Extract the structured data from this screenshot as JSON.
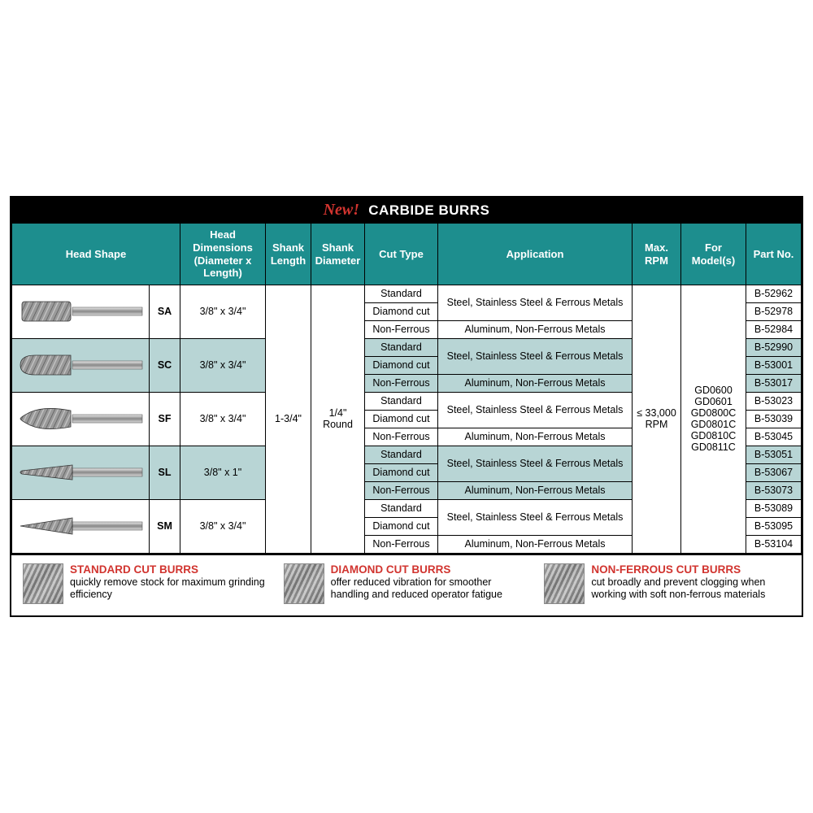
{
  "title": {
    "new": "New!",
    "main": "CARBIDE BURRS"
  },
  "colors": {
    "header_bg": "#1d8e8e",
    "tint": "#b8d5d5",
    "accent_red": "#d1342f"
  },
  "headers": {
    "head_shape": "Head Shape",
    "head_dims": "Head Dimensions\n(Diameter x Length)",
    "shank_len": "Shank\nLength",
    "shank_dia": "Shank\nDiameter",
    "cut_type": "Cut Type",
    "application": "Application",
    "max_rpm": "Max.\nRPM",
    "for_models": "For Model(s)",
    "part_no": "Part No."
  },
  "shared": {
    "shank_length": "1-3/4\"",
    "shank_diameter": "1/4\"\nRound",
    "max_rpm": "≤ 33,000\nRPM",
    "models": "GD0600\nGD0601\nGD0800C\nGD0801C\nGD0810C\nGD0811C"
  },
  "cut_types": {
    "std": "Standard",
    "dia": "Diamond cut",
    "nf": "Non-Ferrous"
  },
  "apps": {
    "steel": "Steel, Stainless Steel & Ferrous Metals",
    "alum": "Aluminum, Non-Ferrous Metals"
  },
  "shapes": [
    {
      "code": "SA",
      "dims": "3/8\" x 3/4\"",
      "tint": false,
      "rows": [
        {
          "cut": "std",
          "app": "steel",
          "part": "B-52962"
        },
        {
          "cut": "dia",
          "app": "steel",
          "part": "B-52978"
        },
        {
          "cut": "nf",
          "app": "alum",
          "part": "B-52984"
        }
      ]
    },
    {
      "code": "SC",
      "dims": "3/8\" x 3/4\"",
      "tint": true,
      "rows": [
        {
          "cut": "std",
          "app": "steel",
          "part": "B-52990"
        },
        {
          "cut": "dia",
          "app": "steel",
          "part": "B-53001"
        },
        {
          "cut": "nf",
          "app": "alum",
          "part": "B-53017"
        }
      ]
    },
    {
      "code": "SF",
      "dims": "3/8\" x 3/4\"",
      "tint": false,
      "rows": [
        {
          "cut": "std",
          "app": "steel",
          "part": "B-53023"
        },
        {
          "cut": "dia",
          "app": "steel",
          "part": "B-53039"
        },
        {
          "cut": "nf",
          "app": "alum",
          "part": "B-53045"
        }
      ]
    },
    {
      "code": "SL",
      "dims": "3/8\" x 1\"",
      "tint": true,
      "rows": [
        {
          "cut": "std",
          "app": "steel",
          "part": "B-53051"
        },
        {
          "cut": "dia",
          "app": "steel",
          "part": "B-53067"
        },
        {
          "cut": "nf",
          "app": "alum",
          "part": "B-53073"
        }
      ]
    },
    {
      "code": "SM",
      "dims": "3/8\" x 3/4\"",
      "tint": false,
      "rows": [
        {
          "cut": "std",
          "app": "steel",
          "part": "B-53089"
        },
        {
          "cut": "dia",
          "app": "steel",
          "part": "B-53095"
        },
        {
          "cut": "nf",
          "app": "alum",
          "part": "B-53104"
        }
      ]
    }
  ],
  "footer": [
    {
      "title": "STANDARD CUT BURRS",
      "desc": "quickly remove stock for maximum grinding efficiency"
    },
    {
      "title": "DIAMOND CUT BURRS",
      "desc": "offer reduced vibration for smoother handling and reduced operator fatigue"
    },
    {
      "title": "NON-FERROUS CUT BURRS",
      "desc": "cut broadly and prevent clogging when working with soft non-ferrous materials"
    }
  ]
}
